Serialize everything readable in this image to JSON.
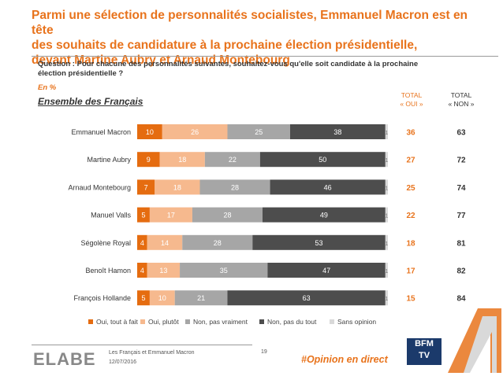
{
  "title_lines": [
    "Parmi une sélection de personnalités socialistes, Emmanuel Macron est en tête",
    "des souhaits de candidature à la prochaine élection présidentielle,",
    "devant Martine Aubry et Arnaud Montebourg"
  ],
  "question": "Question : Pour chacune des personnalités suivantes, souhaitez-vous qu'elle soit candidate à la prochaine élection présidentielle ?",
  "unit": "En %",
  "segment_label": "Ensemble des Français",
  "col_oui": {
    "line1": "TOTAL",
    "line2": "« OUI »"
  },
  "col_non": {
    "line1": "TOTAL",
    "line2": "« NON »"
  },
  "colors": {
    "oui_tout_a_fait": "#E56C10",
    "oui_plutot": "#F6B98E",
    "non_pas_vraiment": "#A6A6A6",
    "non_pas_du_tout": "#4D4D4D",
    "sans_opinion": "#D9D9D9",
    "accent": "#E8731C"
  },
  "chart_data": {
    "type": "bar",
    "orientation": "horizontal",
    "stacked": true,
    "categories": [
      "Emmanuel Macron",
      "Martine Aubry",
      "Arnaud Montebourg",
      "Manuel Valls",
      "Ségolène Royal",
      "Benoît Hamon",
      "François Hollande"
    ],
    "series": [
      {
        "name": "Oui, tout à fait",
        "values": [
          10,
          9,
          7,
          5,
          4,
          4,
          5
        ]
      },
      {
        "name": "Oui, plutôt",
        "values": [
          26,
          18,
          18,
          17,
          14,
          13,
          10
        ]
      },
      {
        "name": "Non, pas vraiment",
        "values": [
          25,
          22,
          28,
          28,
          28,
          35,
          21
        ]
      },
      {
        "name": "Non, pas du tout",
        "values": [
          38,
          50,
          46,
          49,
          53,
          47,
          63
        ]
      },
      {
        "name": "Sans opinion",
        "values": [
          1,
          1,
          1,
          1,
          1,
          1,
          1
        ]
      }
    ],
    "total_oui": [
      36,
      27,
      25,
      22,
      18,
      17,
      15
    ],
    "total_non": [
      63,
      72,
      74,
      77,
      81,
      82,
      84
    ],
    "xlim": [
      0,
      100
    ],
    "legend_position": "bottom"
  },
  "footer": {
    "logo": "ELABE",
    "source_line1": "Les Français et Emmanuel Macron",
    "source_line2": "12/07/2016",
    "page": "19",
    "hashtag": "#Opinion en direct",
    "bfm_line1": "BFM",
    "bfm_line2": "TV"
  }
}
